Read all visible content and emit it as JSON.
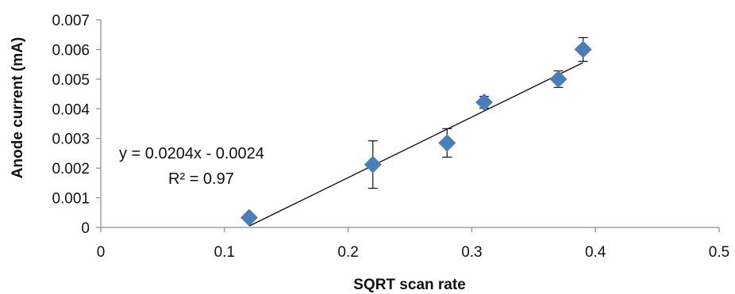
{
  "chart_data": {
    "type": "scatter",
    "xlabel": "SQRT scan rate",
    "ylabel": "Anode current (mA)",
    "xlim": [
      0,
      0.5
    ],
    "ylim": [
      0,
      0.007
    ],
    "x_ticks": [
      "0",
      "0.1",
      "0.2",
      "0.3",
      "0.4",
      "0.5"
    ],
    "y_ticks": [
      "0",
      "0.001",
      "0.002",
      "0.003",
      "0.004",
      "0.005",
      "0.006",
      "0.007"
    ],
    "grid": false,
    "marker_color": "#4a7ebb",
    "series": [
      {
        "x": [
          0.12,
          0.22,
          0.28,
          0.31,
          0.37,
          0.39
        ],
        "y": [
          0.00033,
          0.00212,
          0.00285,
          0.00422,
          0.005,
          0.006
        ],
        "y_error": [
          5e-05,
          0.0008,
          0.00048,
          0.0002,
          0.00028,
          0.0004
        ]
      }
    ],
    "trendline": {
      "slope": 0.0204,
      "intercept": -0.0024,
      "x_range": [
        0.12,
        0.39
      ]
    },
    "annotations": {
      "equation": "y = 0.0204x - 0.0024",
      "r_squared": "R² = 0.97"
    }
  }
}
